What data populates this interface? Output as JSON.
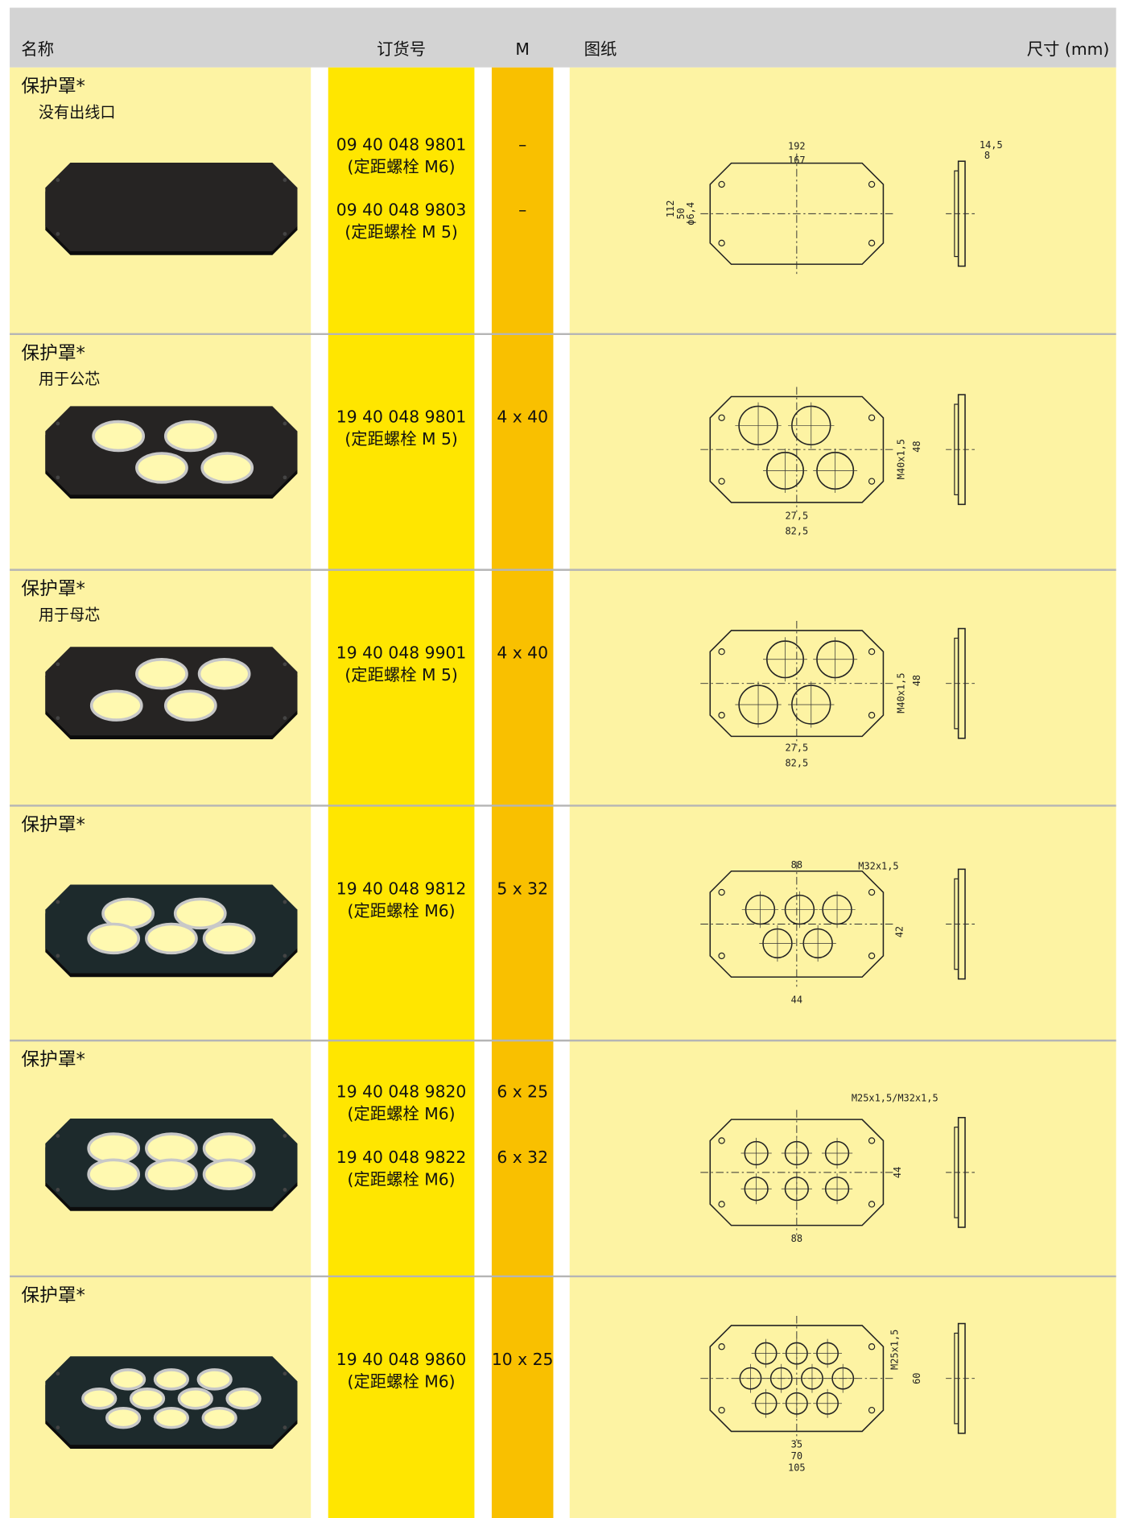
{
  "header": {
    "name": "名称",
    "order_no": "订货号",
    "m": "M",
    "drawing": "图纸",
    "dimensions": "尺寸 (mm)"
  },
  "rows": [
    {
      "title": "保护罩*",
      "subtitle": "没有出线口",
      "items": [
        {
          "order_no": "09 40 048 9801",
          "note": "(定距螺栓 M6)",
          "m": "–"
        },
        {
          "order_no": "09 40 048 9803",
          "note": "(定距螺栓 M 5)",
          "m": "–"
        }
      ],
      "drawing_labels": [
        "192",
        "167",
        "112",
        "50",
        "ϕ6,4",
        "14,5",
        "8"
      ]
    },
    {
      "title": "保护罩*",
      "subtitle": "用于公芯",
      "items": [
        {
          "order_no": "19 40 048 9801",
          "note": "(定距螺栓 M 5)",
          "m": "4 x 40"
        }
      ],
      "drawing_labels": [
        "48",
        "M40x1,5",
        "27,5",
        "82,5"
      ]
    },
    {
      "title": "保护罩*",
      "subtitle": "用于母芯",
      "items": [
        {
          "order_no": "19 40 048 9901",
          "note": "(定距螺栓 M 5)",
          "m": "4 x 40"
        }
      ],
      "drawing_labels": [
        "48",
        "M40x1,5",
        "27,5",
        "82,5"
      ]
    },
    {
      "title": "保护罩*",
      "items": [
        {
          "order_no": "19 40 048 9812",
          "note": "(定距螺栓 M6)",
          "m": "5 x 32"
        }
      ],
      "drawing_labels": [
        "88",
        "M32x1,5",
        "42",
        "44"
      ]
    },
    {
      "title": "保护罩*",
      "items": [
        {
          "order_no": "19 40 048 9820",
          "note": "(定距螺栓 M6)",
          "m": "6 x 25"
        },
        {
          "order_no": "19 40 048 9822",
          "note": "(定距螺栓 M6)",
          "m": "6 x 32"
        }
      ],
      "drawing_labels": [
        "M25x1,5/M32x1,5",
        "44",
        "88"
      ]
    },
    {
      "title": "保护罩*",
      "items": [
        {
          "order_no": "19 40 048 9860",
          "note": "(定距螺栓 M6)",
          "m": "10 x 25"
        }
      ],
      "drawing_labels": [
        "M25x1,5",
        "60",
        "35",
        "70",
        "105"
      ]
    }
  ]
}
